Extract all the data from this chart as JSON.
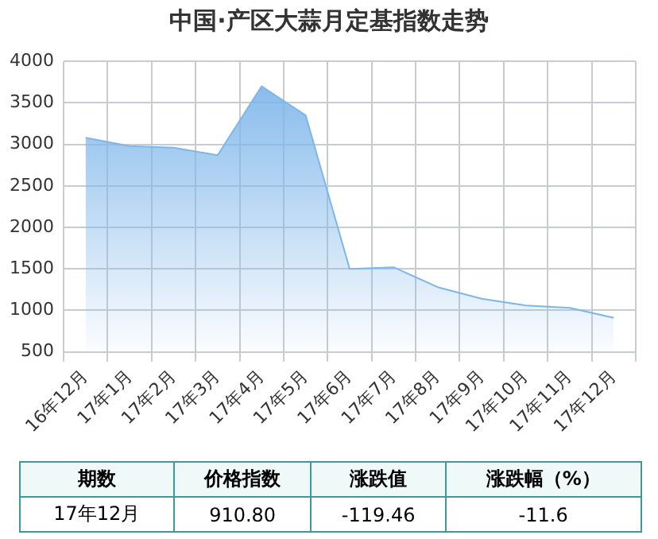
{
  "chart_data": {
    "type": "area",
    "title": "中国·产区大蒜月定基指数走势",
    "categories": [
      "16年12月",
      "17年1月",
      "17年2月",
      "17年3月",
      "17年4月",
      "17年5月",
      "17年6月",
      "17年7月",
      "17年8月",
      "17年9月",
      "17年10月",
      "17年11月",
      "17年12月"
    ],
    "series": [
      {
        "color": "#7eb6ea",
        "values": [
          3080,
          2980,
          2960,
          2870,
          3700,
          3350,
          1500,
          1520,
          1280,
          1140,
          1060,
          1030,
          910.8
        ]
      }
    ],
    "ylim": [
      500,
      4000
    ],
    "yticks": [
      500,
      1000,
      1500,
      2000,
      2500,
      3000,
      3500,
      4000
    ],
    "grid": true,
    "legend": false,
    "marker": "none",
    "annotations": [
      "期数",
      "价格指数",
      "涨跌值",
      "涨跌幅（%）",
      "17年12月",
      "910.80",
      "-119.46",
      "-11.6"
    ]
  }
}
